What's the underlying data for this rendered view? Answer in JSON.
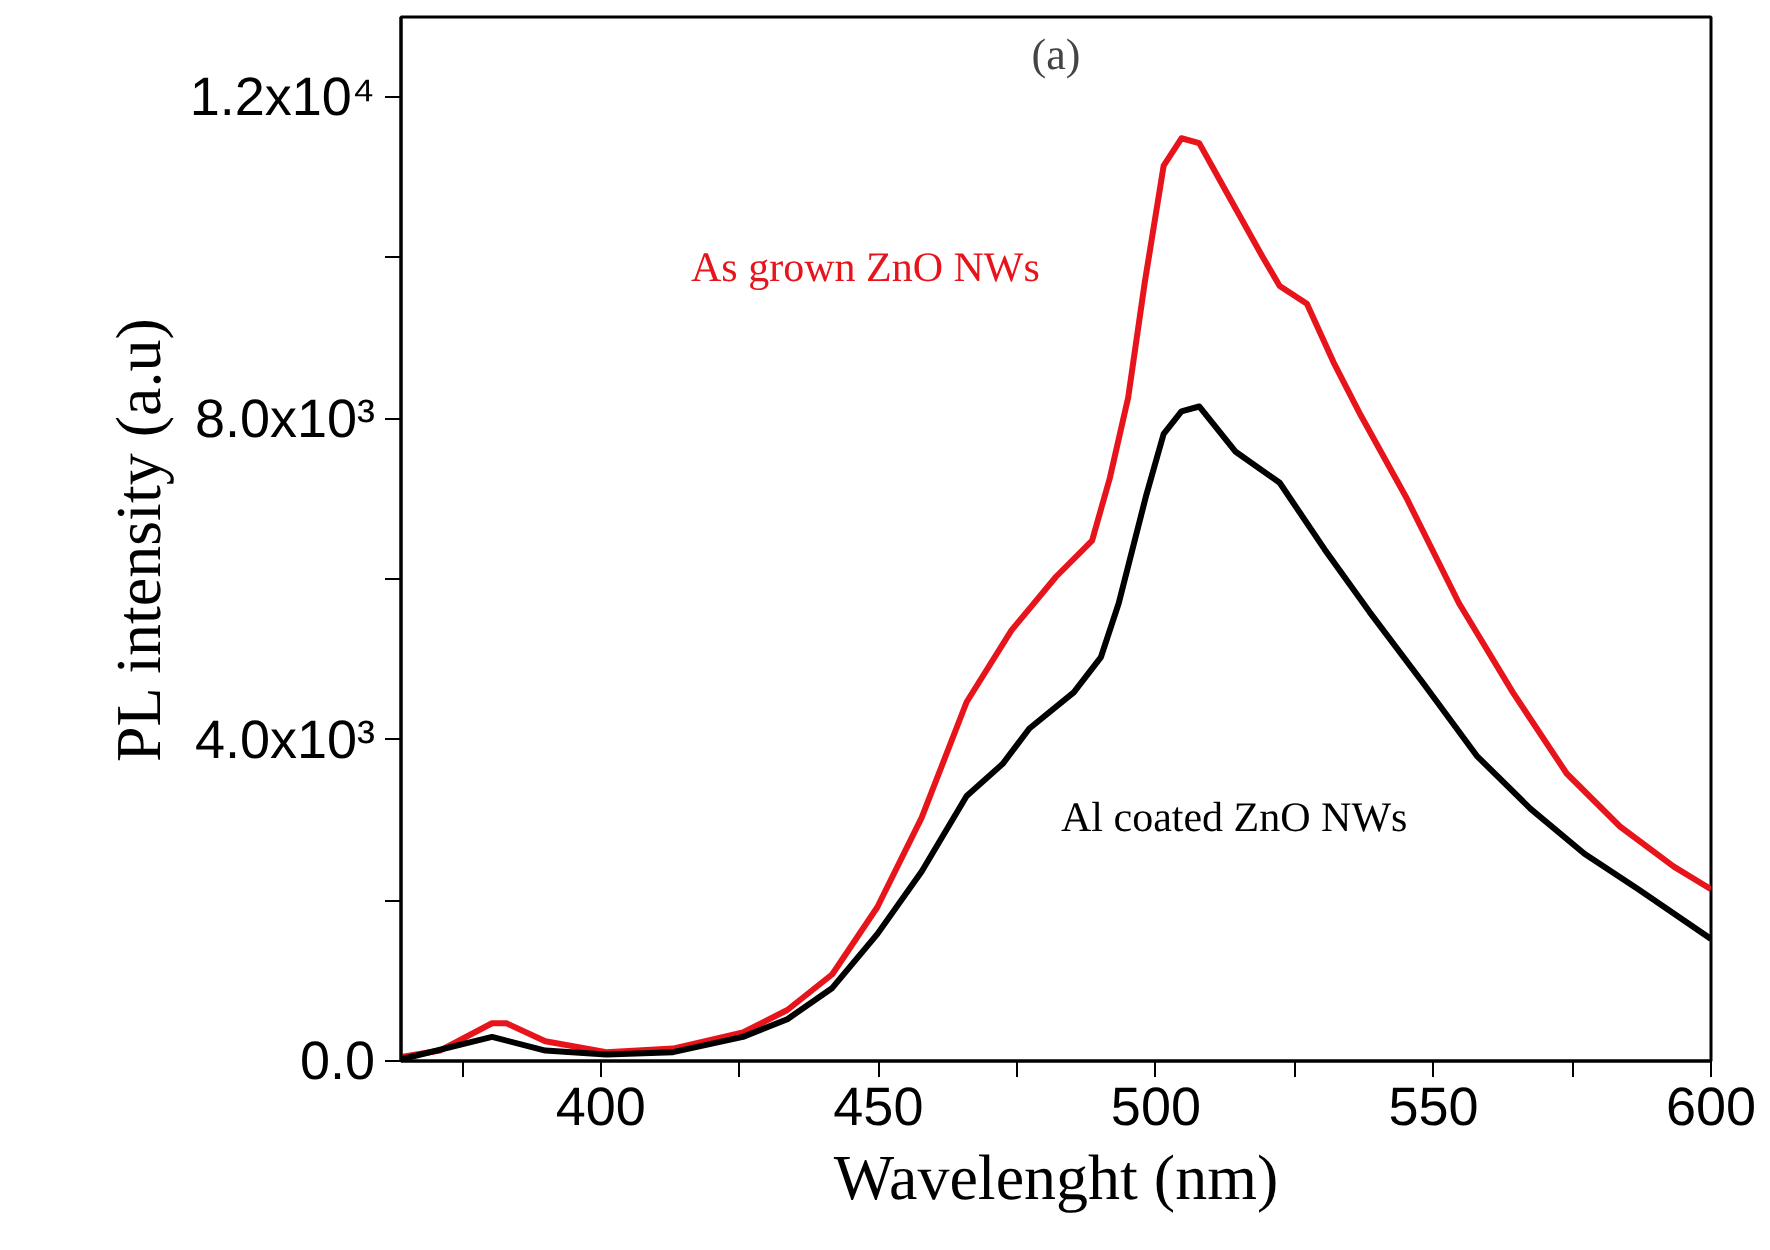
{
  "chart_data": {
    "type": "line",
    "title": "(a)",
    "xlabel": "Wavelenght (nm)",
    "ylabel": "PL intensity (a.u)",
    "xlim": [
      364,
      600
    ],
    "ylim": [
      0,
      13000
    ],
    "xticks": [
      {
        "value": 375,
        "label": null
      },
      400,
      {
        "value": 425,
        "label": null
      },
      450,
      {
        "value": 475,
        "label": null
      },
      500,
      {
        "value": 525,
        "label": null
      },
      550,
      {
        "value": 575,
        "label": null
      },
      600
    ],
    "yticks": [
      {
        "value": 0,
        "label": "0.0"
      },
      {
        "value": 2000,
        "label": null
      },
      {
        "value": 4000,
        "label": "4.0x10³"
      },
      {
        "value": 6000,
        "label": null
      },
      {
        "value": 8000,
        "label": "8.0x10³"
      },
      {
        "value": 10000,
        "label": null
      },
      {
        "value": 12000,
        "label": "1.2x10⁴"
      }
    ],
    "grid": false,
    "marker": "none",
    "line_style": "solid",
    "series": [
      {
        "name": "As grown ZnO NWs",
        "color": "#e8141c",
        "x": [
          364,
          371,
          380.4,
          383,
          390,
          401,
          413,
          425.6,
          433.6,
          441.7,
          449.8,
          457.8,
          465.9,
          474,
          482,
          488.5,
          491.7,
          495,
          498,
          501.4,
          504.6,
          507.8,
          512.7,
          519,
          522.3,
          527.2,
          532,
          536.9,
          545,
          554.6,
          564.3,
          574,
          583.6,
          593.3,
          600
        ],
        "values": [
          50,
          130,
          470,
          470,
          245,
          110,
          155,
          355,
          635,
          1080,
          1915,
          3030,
          4470,
          5365,
          6030,
          6480,
          7260,
          8260,
          9700,
          11150,
          11490,
          11430,
          10820,
          10040,
          9650,
          9430,
          8700,
          8040,
          7030,
          5700,
          4590,
          3580,
          2920,
          2420,
          2140
        ]
      },
      {
        "name": "Al coated ZnO NWs",
        "color": "#000000",
        "x": [
          364,
          380.4,
          390,
          401,
          413,
          425.6,
          433.6,
          441.7,
          449.8,
          457.8,
          465.9,
          472.4,
          477.2,
          485.2,
          490.1,
          493.3,
          498.2,
          501.4,
          504.6,
          507.8,
          514.3,
          522.3,
          530.4,
          538.5,
          548.2,
          557.8,
          567.5,
          577.2,
          586.9,
          600
        ],
        "values": [
          20,
          300,
          130,
          80,
          110,
          300,
          520,
          910,
          1580,
          2360,
          3300,
          3700,
          4140,
          4590,
          5030,
          5700,
          7030,
          7810,
          8090,
          8150,
          7590,
          7200,
          6370,
          5590,
          4700,
          3800,
          3140,
          2580,
          2140,
          1520
        ]
      }
    ]
  }
}
